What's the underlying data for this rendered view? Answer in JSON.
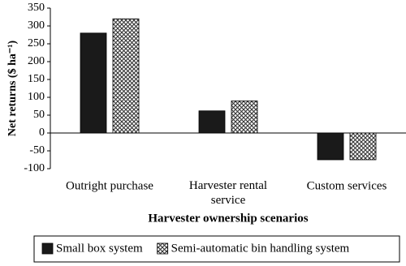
{
  "chart_data": {
    "type": "bar",
    "x_label": "Harvester ownership scenarios",
    "y_label": "Net returns ($ ha⁻¹)",
    "categories": [
      "Outright purchase",
      "Harvester rental service",
      "Custom services"
    ],
    "series": [
      {
        "name": "Small box system",
        "color": "#1a1a1a",
        "values": [
          280,
          62,
          -75
        ]
      },
      {
        "name": "Semi-automatic bin handling system",
        "color": "#ffffff",
        "pattern": "crosshatch",
        "values": [
          320,
          90,
          -75
        ]
      }
    ],
    "ylim": [
      -100,
      350
    ],
    "yticks": [
      -100,
      -50,
      0,
      50,
      100,
      150,
      200,
      250,
      300,
      350
    ],
    "grid": false
  }
}
